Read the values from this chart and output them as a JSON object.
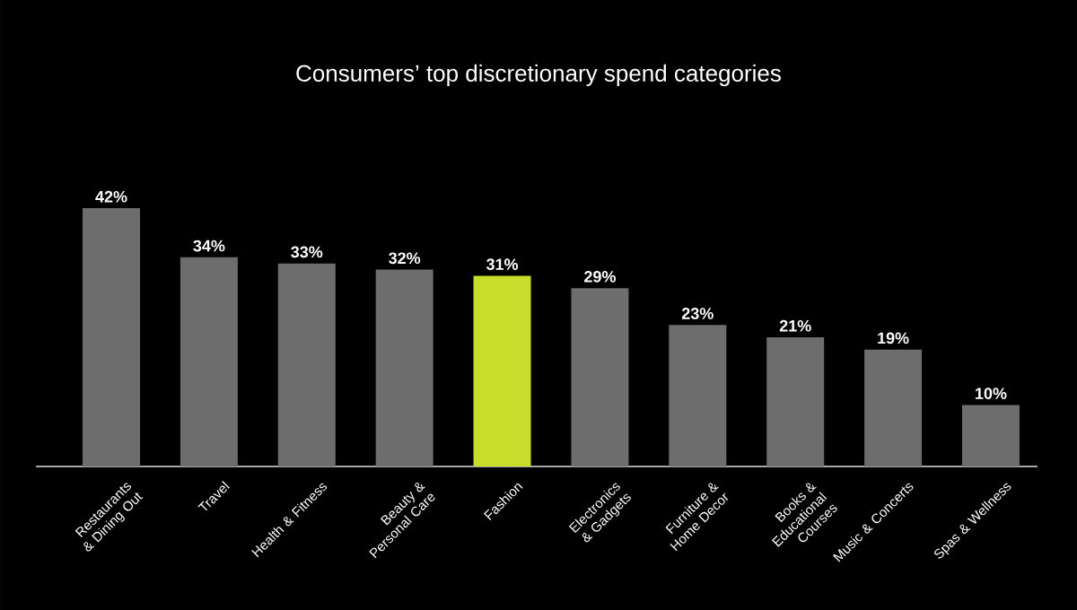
{
  "chart_data": {
    "type": "bar",
    "title": "Consumers’ top discretionary spend categories",
    "categories": [
      "Restaurants & Dining Out",
      "Travel",
      "Health & Fitness",
      "Beauty & Personal Care",
      "Fashion",
      "Electronics & Gadgets",
      "Furniture & Home Decor",
      "Books & Educational Courses",
      "Music & Concerts",
      "Spas & Wellness"
    ],
    "values": [
      42,
      34,
      33,
      32,
      31,
      29,
      23,
      21,
      19,
      10
    ],
    "value_labels": [
      "42%",
      "34%",
      "33%",
      "32%",
      "31%",
      "29%",
      "23%",
      "21%",
      "19%",
      "10%"
    ],
    "colors": [
      "#6d6d6d",
      "#6d6d6d",
      "#6d6d6d",
      "#6d6d6d",
      "#c8dc2c",
      "#6d6d6d",
      "#6d6d6d",
      "#6d6d6d",
      "#6d6d6d",
      "#6d6d6d"
    ]
  }
}
